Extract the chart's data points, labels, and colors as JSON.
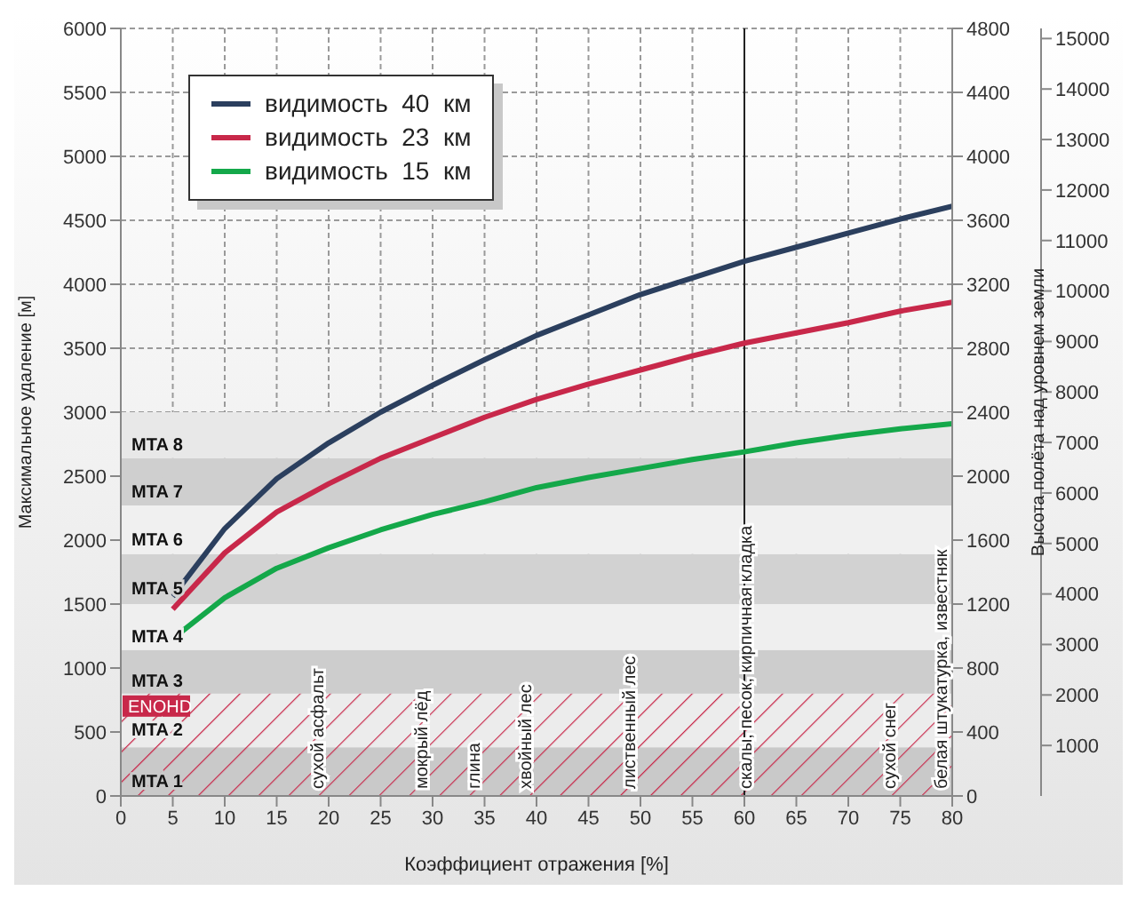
{
  "chart_data": {
    "type": "line",
    "xlabel": "Коэффициент отражения [%]",
    "ylabel": "Максимальное удаление [м]",
    "y2label": "Высота полёта над уровнем земли",
    "x": [
      5,
      10,
      15,
      20,
      25,
      30,
      35,
      40,
      45,
      50,
      55,
      60,
      65,
      70,
      75,
      80
    ],
    "series": [
      {
        "name": "видимость  40  км",
        "color": "#2b3f5e",
        "values": [
          1560,
          2090,
          2480,
          2760,
          3000,
          3210,
          3410,
          3600,
          3760,
          3920,
          4050,
          4180,
          4290,
          4400,
          4510,
          4610
        ]
      },
      {
        "name": "видимость  23  км",
        "color": "#c8284a",
        "values": [
          1460,
          1900,
          2220,
          2440,
          2640,
          2800,
          2960,
          3100,
          3220,
          3330,
          3440,
          3540,
          3620,
          3700,
          3790,
          3860
        ]
      },
      {
        "name": "видимость  15  км",
        "color": "#14a84a",
        "values": [
          1230,
          1550,
          1780,
          1940,
          2080,
          2200,
          2300,
          2410,
          2490,
          2560,
          2630,
          2690,
          2760,
          2820,
          2870,
          2910
        ]
      }
    ],
    "xlim": [
      0,
      80
    ],
    "xticks": [
      0,
      5,
      10,
      15,
      20,
      25,
      30,
      35,
      40,
      45,
      50,
      55,
      60,
      65,
      70,
      75,
      80
    ],
    "ylim": [
      0,
      6000
    ],
    "yticks": [
      0,
      500,
      1000,
      1500,
      2000,
      2500,
      3000,
      3500,
      4000,
      4500,
      5000,
      5500,
      6000
    ],
    "y2lim": [
      0,
      4800
    ],
    "y2ticks": [
      0,
      400,
      800,
      1200,
      1600,
      2000,
      2400,
      2800,
      3200,
      3600,
      4000,
      4400,
      4800
    ],
    "y3lim": [
      0,
      15200
    ],
    "y3ticks": [
      1000,
      2000,
      3000,
      4000,
      5000,
      6000,
      7000,
      8000,
      9000,
      10000,
      11000,
      12000,
      13000,
      14000,
      15000
    ],
    "bands": [
      {
        "axis": "y",
        "from": 0,
        "to": 380,
        "label": "MTA 1",
        "color": "#c9c9c9"
      },
      {
        "axis": "y",
        "from": 380,
        "to": 800,
        "label": "MTA 2",
        "color": "#ececec"
      },
      {
        "axis": "y",
        "from": 800,
        "to": 1140,
        "label": "MTA 3",
        "color": "#cdcdcd"
      },
      {
        "axis": "y",
        "from": 1140,
        "to": 1500,
        "label": "MTA 4",
        "color": "#efefef"
      },
      {
        "axis": "y",
        "from": 1500,
        "to": 1890,
        "label": "MTA 5",
        "color": "#d2d2d2"
      },
      {
        "axis": "y",
        "from": 1890,
        "to": 2270,
        "label": "MTA 6",
        "color": "#f0f0f0"
      },
      {
        "axis": "y",
        "from": 2270,
        "to": 2640,
        "label": "MTA 7",
        "color": "#cfcfcf"
      },
      {
        "axis": "y",
        "from": 2640,
        "to": 3000,
        "label": "MTA 8",
        "color": "#e8e8e8"
      },
      {
        "axis": "y",
        "from": 0,
        "to": 800,
        "label": "ENOHD",
        "color": "#c8284a"
      }
    ],
    "ref_lines": [
      {
        "axis": "x",
        "value": 60,
        "label": "скалы, песок, кирпичная кладка",
        "color": "#222222"
      }
    ],
    "annotations": [
      {
        "text": "сухой асфальт",
        "x": 20,
        "y": 0
      },
      {
        "text": "мокрый лёд",
        "x": 30,
        "y": 0
      },
      {
        "text": "глина",
        "x": 35,
        "y": 0
      },
      {
        "text": "хвойный лес",
        "x": 40,
        "y": 0
      },
      {
        "text": "лиственный лес",
        "x": 50,
        "y": 0
      },
      {
        "text": "сухой снег",
        "x": 75,
        "y": 0
      },
      {
        "text": "белая штукатурка, известняк",
        "x": 80,
        "y": 0
      }
    ],
    "grid": true,
    "legend": "top left"
  }
}
